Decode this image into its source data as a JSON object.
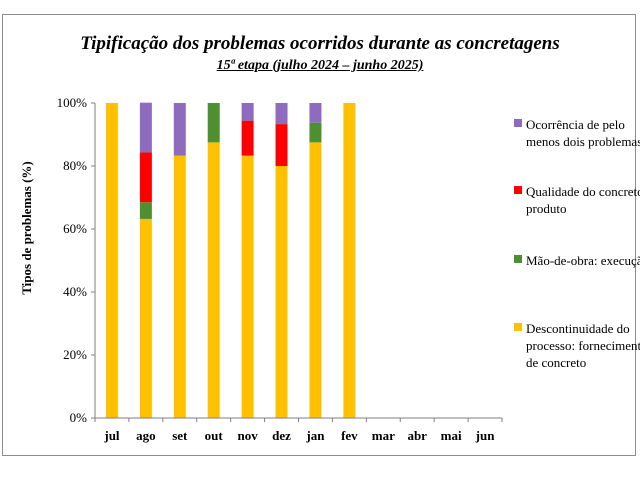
{
  "chart_data": {
    "type": "bar",
    "stacked": true,
    "title": "Tipificação dos problemas ocorridos durante as concretagens",
    "subtitle": "15ª etapa (julho 2024 – junho 2025)",
    "ylabel": "Tipos de problemas (%)",
    "xlabel": "",
    "ylim": [
      0,
      100
    ],
    "yticks": [
      0,
      20,
      40,
      60,
      80,
      100
    ],
    "ytick_labels": [
      "0%",
      "20%",
      "40%",
      "60%",
      "80%",
      "100%"
    ],
    "grid": false,
    "legend_position": "right",
    "categories": [
      "jul",
      "ago",
      "set",
      "out",
      "nov",
      "dez",
      "jan",
      "fev",
      "mar",
      "abr",
      "mai",
      "jun"
    ],
    "series": [
      {
        "name": "Descontinuidade do processo: fornecimento de concreto",
        "color": "#FFC000",
        "values": [
          100,
          63.2,
          83.3,
          87.5,
          83.3,
          80,
          87.5,
          100,
          0,
          0,
          0,
          0
        ]
      },
      {
        "name": "Mão-de-obra: execução",
        "color": "#4E8F2F",
        "values": [
          0,
          5.3,
          0,
          12.5,
          0,
          0,
          6.25,
          0,
          0,
          0,
          0,
          0
        ]
      },
      {
        "name": "Qualidade do concreto: produto",
        "color": "#FF0000",
        "values": [
          0,
          15.8,
          0,
          0,
          11.1,
          13.3,
          0,
          0,
          0,
          0,
          0,
          0
        ]
      },
      {
        "name": "Ocorrência de pelo menos dois problemas",
        "color": "#8E6BBF",
        "values": [
          0,
          15.8,
          16.7,
          0,
          5.6,
          6.7,
          6.25,
          0,
          0,
          0,
          0,
          0
        ]
      }
    ]
  }
}
